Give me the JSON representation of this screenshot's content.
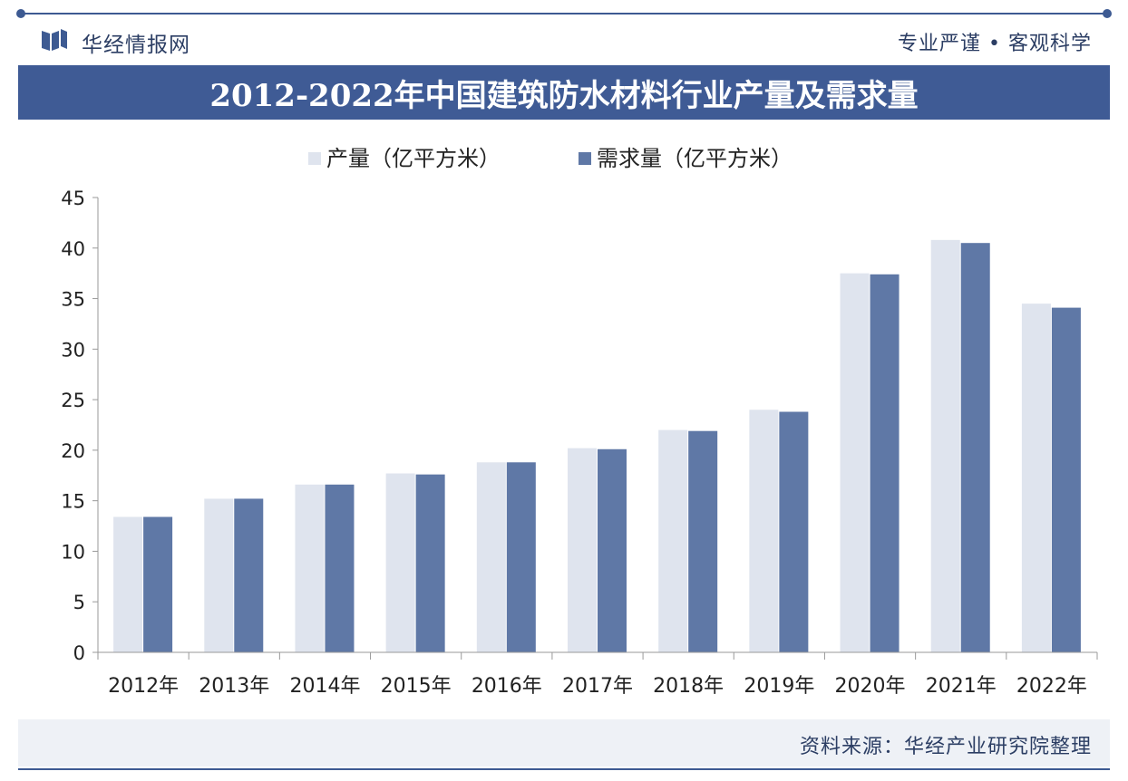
{
  "header": {
    "brand": "华经情报网",
    "slogan": "专业严谨 • 客观科学",
    "title": "2012-2022年中国建筑防水材料行业产量及需求量"
  },
  "footer": {
    "source": "资料来源：华经产业研究院整理"
  },
  "colors": {
    "accent": "#3f5b95",
    "production": "#dfe4ee",
    "demand": "#5f78a6"
  },
  "chart_data": {
    "type": "bar",
    "categories": [
      "2012年",
      "2013年",
      "2014年",
      "2015年",
      "2016年",
      "2017年",
      "2018年",
      "2019年",
      "2020年",
      "2021年",
      "2022年"
    ],
    "series": [
      {
        "name": "产量（亿平方米）",
        "values": [
          13.4,
          15.2,
          16.6,
          17.7,
          18.8,
          20.2,
          22.0,
          24.0,
          37.5,
          40.8,
          34.5
        ]
      },
      {
        "name": "需求量（亿平方米）",
        "values": [
          13.4,
          15.2,
          16.6,
          17.6,
          18.8,
          20.1,
          21.9,
          23.8,
          37.4,
          40.5,
          34.1
        ]
      }
    ],
    "ylim": [
      0,
      45
    ],
    "yticks": [
      0,
      5,
      10,
      15,
      20,
      25,
      30,
      35,
      40,
      45
    ],
    "legend_position": "top-left",
    "grid": false
  }
}
